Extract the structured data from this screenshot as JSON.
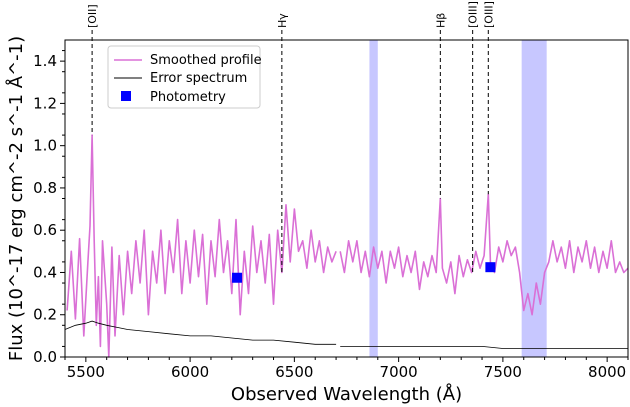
{
  "chart_data": {
    "type": "line",
    "title": "",
    "xlabel": "Observed Wavelength (Å)",
    "ylabel": "Flux (10^-17 erg cm^-2 s^-1 Å^-1)",
    "xlim": [
      5400,
      8100
    ],
    "ylim": [
      0.0,
      1.5
    ],
    "xticks": [
      5500,
      6000,
      6500,
      7000,
      7500,
      8000
    ],
    "xtick_labels": [
      "5500",
      "6000",
      "6500",
      "7000",
      "7500",
      "8000"
    ],
    "yticks": [
      0.0,
      0.2,
      0.4,
      0.6,
      0.8,
      1.0,
      1.2,
      1.4
    ],
    "ytick_labels": [
      "0.0",
      "0.2",
      "0.4",
      "0.6",
      "0.8",
      "1.0",
      "1.2",
      "1.4"
    ],
    "legend": {
      "position": "top-left",
      "entries": [
        "Smoothed profile",
        "Error spectrum",
        "Photometry"
      ]
    },
    "colors": {
      "smoothed": "#da70d6",
      "error": "#000000",
      "photometry": "#0000ff",
      "band": "#9999ff"
    },
    "emission_lines": [
      {
        "label": "[OII]",
        "x": 5530
      },
      {
        "label": "Hγ",
        "x": 6440
      },
      {
        "label": "Hβ",
        "x": 7200
      },
      {
        "label": "[OIII]",
        "x": 7355
      },
      {
        "label": "[OIII]",
        "x": 7430
      }
    ],
    "shaded_regions": [
      {
        "x0": 6860,
        "x1": 6900
      },
      {
        "x0": 7590,
        "x1": 7710
      }
    ],
    "series": [
      {
        "name": "Smoothed profile",
        "segments": [
          {
            "x0": 5400,
            "x1": 6700,
            "points": [
              [
                5410,
                0.22
              ],
              [
                5430,
                0.5
              ],
              [
                5450,
                0.18
              ],
              [
                5470,
                0.56
              ],
              [
                5490,
                0.1
              ],
              [
                5510,
                0.45
              ],
              [
                5520,
                0.62
              ],
              [
                5530,
                1.05
              ],
              [
                5540,
                0.55
              ],
              [
                5550,
                0.15
              ],
              [
                5560,
                0.38
              ],
              [
                5570,
                0.05
              ],
              [
                5580,
                0.55
              ],
              [
                5600,
                0.25
              ],
              [
                5610,
                0.0
              ],
              [
                5625,
                0.52
              ],
              [
                5640,
                0.1
              ],
              [
                5660,
                0.48
              ],
              [
                5680,
                0.2
              ],
              [
                5700,
                0.5
              ],
              [
                5720,
                0.3
              ],
              [
                5740,
                0.55
              ],
              [
                5760,
                0.35
              ],
              [
                5780,
                0.6
              ],
              [
                5800,
                0.2
              ],
              [
                5820,
                0.5
              ],
              [
                5840,
                0.35
              ],
              [
                5860,
                0.6
              ],
              [
                5880,
                0.3
              ],
              [
                5900,
                0.55
              ],
              [
                5920,
                0.4
              ],
              [
                5940,
                0.65
              ],
              [
                5960,
                0.3
              ],
              [
                5980,
                0.55
              ],
              [
                6000,
                0.35
              ],
              [
                6020,
                0.6
              ],
              [
                6040,
                0.38
              ],
              [
                6060,
                0.58
              ],
              [
                6080,
                0.25
              ],
              [
                6100,
                0.55
              ],
              [
                6120,
                0.38
              ],
              [
                6140,
                0.65
              ],
              [
                6160,
                0.4
              ],
              [
                6180,
                0.55
              ],
              [
                6200,
                0.3
              ],
              [
                6220,
                0.65
              ],
              [
                6240,
                0.2
              ],
              [
                6260,
                0.5
              ],
              [
                6280,
                0.3
              ],
              [
                6300,
                0.62
              ],
              [
                6320,
                0.4
              ],
              [
                6340,
                0.55
              ],
              [
                6360,
                0.35
              ],
              [
                6380,
                0.58
              ],
              [
                6400,
                0.25
              ],
              [
                6420,
                0.6
              ],
              [
                6440,
                0.4
              ],
              [
                6460,
                0.72
              ],
              [
                6480,
                0.45
              ],
              [
                6500,
                0.7
              ],
              [
                6520,
                0.5
              ],
              [
                6540,
                0.55
              ],
              [
                6560,
                0.42
              ],
              [
                6580,
                0.6
              ],
              [
                6600,
                0.45
              ],
              [
                6620,
                0.55
              ],
              [
                6640,
                0.4
              ],
              [
                6660,
                0.52
              ],
              [
                6680,
                0.45
              ],
              [
                6700,
                0.5
              ]
            ]
          },
          {
            "x0": 6700,
            "x1": 8100,
            "points": [
              [
                6720,
                0.5
              ],
              [
                6740,
                0.4
              ],
              [
                6760,
                0.55
              ],
              [
                6780,
                0.45
              ],
              [
                6800,
                0.55
              ],
              [
                6820,
                0.4
              ],
              [
                6840,
                0.5
              ],
              [
                6860,
                0.38
              ],
              [
                6880,
                0.52
              ],
              [
                6900,
                0.42
              ],
              [
                6920,
                0.5
              ],
              [
                6940,
                0.35
              ],
              [
                6960,
                0.5
              ],
              [
                6980,
                0.42
              ],
              [
                7000,
                0.52
              ],
              [
                7020,
                0.38
              ],
              [
                7040,
                0.48
              ],
              [
                7060,
                0.4
              ],
              [
                7080,
                0.5
              ],
              [
                7100,
                0.32
              ],
              [
                7120,
                0.45
              ],
              [
                7140,
                0.38
              ],
              [
                7160,
                0.48
              ],
              [
                7180,
                0.4
              ],
              [
                7200,
                0.75
              ],
              [
                7210,
                0.42
              ],
              [
                7230,
                0.35
              ],
              [
                7250,
                0.45
              ],
              [
                7270,
                0.3
              ],
              [
                7290,
                0.48
              ],
              [
                7310,
                0.38
              ],
              [
                7330,
                0.46
              ],
              [
                7350,
                0.4
              ],
              [
                7370,
                0.5
              ],
              [
                7390,
                0.42
              ],
              [
                7410,
                0.48
              ],
              [
                7430,
                0.77
              ],
              [
                7440,
                0.45
              ],
              [
                7460,
                0.4
              ],
              [
                7480,
                0.52
              ],
              [
                7500,
                0.45
              ],
              [
                7520,
                0.55
              ],
              [
                7540,
                0.48
              ],
              [
                7560,
                0.52
              ],
              [
                7580,
                0.4
              ],
              [
                7600,
                0.22
              ],
              [
                7620,
                0.3
              ],
              [
                7640,
                0.2
              ],
              [
                7660,
                0.35
              ],
              [
                7680,
                0.25
              ],
              [
                7700,
                0.4
              ],
              [
                7720,
                0.45
              ],
              [
                7740,
                0.55
              ],
              [
                7760,
                0.45
              ],
              [
                7780,
                0.52
              ],
              [
                7800,
                0.42
              ],
              [
                7820,
                0.55
              ],
              [
                7840,
                0.4
              ],
              [
                7860,
                0.52
              ],
              [
                7880,
                0.45
              ],
              [
                7900,
                0.55
              ],
              [
                7920,
                0.42
              ],
              [
                7940,
                0.52
              ],
              [
                7960,
                0.4
              ],
              [
                7980,
                0.5
              ],
              [
                8000,
                0.42
              ],
              [
                8020,
                0.55
              ],
              [
                8040,
                0.4
              ],
              [
                8060,
                0.45
              ],
              [
                8080,
                0.4
              ],
              [
                8100,
                0.42
              ]
            ]
          }
        ]
      },
      {
        "name": "Error spectrum",
        "segments": [
          {
            "points": [
              [
                5400,
                0.13
              ],
              [
                5450,
                0.15
              ],
              [
                5500,
                0.16
              ],
              [
                5530,
                0.17
              ],
              [
                5560,
                0.16
              ],
              [
                5600,
                0.15
              ],
              [
                5650,
                0.14
              ],
              [
                5700,
                0.13
              ],
              [
                5800,
                0.12
              ],
              [
                5900,
                0.11
              ],
              [
                6000,
                0.1
              ],
              [
                6100,
                0.1
              ],
              [
                6200,
                0.09
              ],
              [
                6300,
                0.08
              ],
              [
                6400,
                0.08
              ],
              [
                6500,
                0.07
              ],
              [
                6600,
                0.06
              ],
              [
                6700,
                0.06
              ]
            ]
          },
          {
            "points": [
              [
                6720,
                0.05
              ],
              [
                6800,
                0.05
              ],
              [
                6900,
                0.05
              ],
              [
                7000,
                0.05
              ],
              [
                7100,
                0.05
              ],
              [
                7200,
                0.05
              ],
              [
                7300,
                0.05
              ],
              [
                7400,
                0.05
              ],
              [
                7500,
                0.04
              ],
              [
                7600,
                0.04
              ],
              [
                7700,
                0.04
              ],
              [
                7800,
                0.04
              ],
              [
                7900,
                0.04
              ],
              [
                8000,
                0.04
              ],
              [
                8100,
                0.04
              ]
            ]
          }
        ]
      },
      {
        "name": "Photometry",
        "points": [
          [
            6225,
            0.375
          ],
          [
            7440,
            0.425
          ]
        ]
      }
    ]
  }
}
